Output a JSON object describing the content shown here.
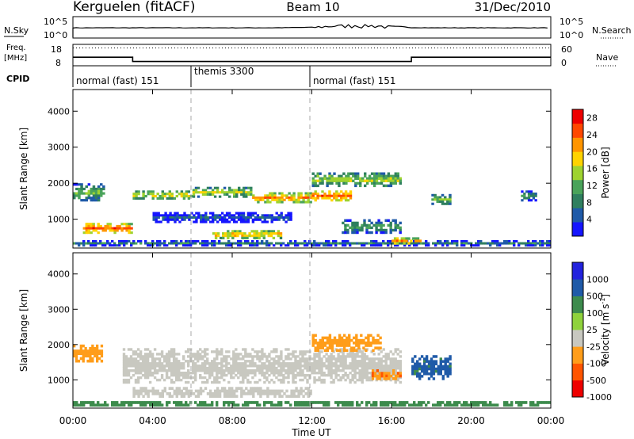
{
  "header": {
    "station": "Kerguelen (fitACF)",
    "beam": "Beam 10",
    "date": "31/Dec/2010"
  },
  "sky_panel": {
    "left_label": "N.Sky",
    "left_ticks": [
      "10^5",
      "10^0"
    ],
    "right_ticks": [
      "10^5",
      "10^0"
    ],
    "right_label": "N.Search"
  },
  "freq_panel": {
    "left_label_1": "Freq.",
    "left_label_2": "[MHz]",
    "left_ticks": [
      "18",
      "8"
    ],
    "right_ticks": [
      "60",
      "0"
    ],
    "right_label": "Nave"
  },
  "cpid": {
    "label": "CPID",
    "segments": [
      {
        "name": "normal (fast) 151",
        "start_hour": 0
      },
      {
        "name": "themis 3300",
        "start_hour": 6
      },
      {
        "name": "normal (fast) 151",
        "start_hour": 12
      }
    ]
  },
  "x_axis": {
    "label": "Time UT",
    "ticks": [
      "00:00",
      "04:00",
      "08:00",
      "12:00",
      "16:00",
      "20:00",
      "00:00"
    ],
    "range_hours": [
      0,
      24
    ]
  },
  "colors": {
    "power": [
      "#1515ff",
      "#1f5aa8",
      "#2f7f5f",
      "#4aa35a",
      "#9ed330",
      "#ffd300",
      "#ff9500",
      "#ff4800",
      "#ee0000"
    ],
    "velocity": [
      "#ee0000",
      "#ff5500",
      "#ff9d1a",
      "#c8c8c0",
      "#8fd23c",
      "#3d8b4d",
      "#1f5aa8",
      "#2222dd"
    ]
  },
  "chart_data": [
    {
      "type": "line",
      "panel": "N.Sky / N.Search",
      "x": [
        0,
        1,
        2,
        3,
        4,
        5,
        6,
        7,
        8,
        9,
        10,
        11,
        12,
        13,
        14,
        15,
        16,
        17,
        18,
        19,
        20,
        21,
        22,
        23,
        24
      ],
      "series": [
        {
          "name": "N.Sky",
          "values": [
            1000,
            1000,
            1000,
            1000,
            1000,
            1000,
            1000,
            1000,
            1000,
            1000,
            1000,
            1200,
            1500,
            4000,
            8000,
            6000,
            2500,
            1200,
            1000,
            1000,
            1000,
            1000,
            1000,
            1000,
            1000
          ]
        }
      ]
    },
    {
      "type": "line",
      "panel": "Freq. / Nave",
      "x": [
        0,
        3,
        3,
        17,
        17,
        24
      ],
      "ylim": [
        8,
        18
      ],
      "y2lim": [
        0,
        60
      ],
      "series": [
        {
          "name": "Freq.",
          "values": [
            12,
            12,
            10,
            10,
            12,
            12
          ]
        },
        {
          "name": "Nave",
          "values": [
            50,
            50,
            50,
            50,
            50,
            50
          ]
        }
      ]
    },
    {
      "type": "heatmap",
      "panel": "Power",
      "xlabel": "Time UT",
      "ylabel": "Slant Range [km]",
      "ylim": [
        200,
        4600
      ],
      "yticks": [
        1000,
        2000,
        3000,
        4000
      ],
      "colorbar": {
        "label": "Power [dB]",
        "ticks": [
          4,
          8,
          12,
          16,
          20,
          24,
          28
        ],
        "range": [
          0,
          30
        ]
      },
      "bands": [
        {
          "t0": 0.0,
          "t1": 24.0,
          "r0": 250,
          "r1": 420,
          "value": 8
        },
        {
          "t0": 0.5,
          "t1": 3.0,
          "r0": 600,
          "r1": 900,
          "value": 24
        },
        {
          "t0": 0.0,
          "t1": 1.6,
          "r0": 1500,
          "r1": 2000,
          "value": 14
        },
        {
          "t0": 3.0,
          "t1": 6.0,
          "r0": 1550,
          "r1": 1800,
          "value": 18
        },
        {
          "t0": 6.0,
          "t1": 9.0,
          "r0": 1600,
          "r1": 1900,
          "value": 16
        },
        {
          "t0": 9.0,
          "t1": 12.0,
          "r0": 1450,
          "r1": 1750,
          "value": 22
        },
        {
          "t0": 12.0,
          "t1": 14.0,
          "r0": 1500,
          "r1": 1800,
          "value": 24
        },
        {
          "t0": 4.0,
          "t1": 11.0,
          "r0": 900,
          "r1": 1200,
          "value": 6
        },
        {
          "t0": 7.0,
          "t1": 10.5,
          "r0": 450,
          "r1": 700,
          "value": 20
        },
        {
          "t0": 12.0,
          "t1": 16.5,
          "r0": 1900,
          "r1": 2300,
          "value": 16
        },
        {
          "t0": 13.5,
          "t1": 16.5,
          "r0": 600,
          "r1": 1000,
          "value": 12
        },
        {
          "t0": 16.0,
          "t1": 17.5,
          "r0": 300,
          "r1": 500,
          "value": 22
        },
        {
          "t0": 18.0,
          "t1": 19.0,
          "r0": 1400,
          "r1": 1700,
          "value": 14
        },
        {
          "t0": 22.5,
          "t1": 23.3,
          "r0": 1500,
          "r1": 1800,
          "value": 10
        }
      ]
    },
    {
      "type": "heatmap",
      "panel": "Velocity",
      "xlabel": "Time UT",
      "ylabel": "Slant Range [km]",
      "ylim": [
        200,
        4600
      ],
      "yticks": [
        1000,
        2000,
        3000,
        4000
      ],
      "colorbar": {
        "label": "Velocity [m s^-1]",
        "ticks": [
          1000,
          500,
          100,
          25,
          -25,
          -100,
          -500,
          -1000
        ]
      },
      "bands": [
        {
          "t0": 0.0,
          "t1": 1.5,
          "r0": 1500,
          "r1": 2000,
          "value": -300
        },
        {
          "t0": 2.5,
          "t1": 16.5,
          "r0": 900,
          "r1": 1900,
          "value": 0
        },
        {
          "t0": 3.0,
          "t1": 12.0,
          "r0": 500,
          "r1": 800,
          "value": 0
        },
        {
          "t0": 12.0,
          "t1": 15.5,
          "r0": 1800,
          "r1": 2300,
          "value": -300
        },
        {
          "t0": 15.0,
          "t1": 16.5,
          "r0": 1000,
          "r1": 1300,
          "value": -400
        },
        {
          "t0": 17.0,
          "t1": 19.0,
          "r0": 1000,
          "r1": 1700,
          "value": 150
        },
        {
          "t0": 0.0,
          "t1": 24.0,
          "r0": 250,
          "r1": 400,
          "value": 60
        }
      ]
    }
  ]
}
